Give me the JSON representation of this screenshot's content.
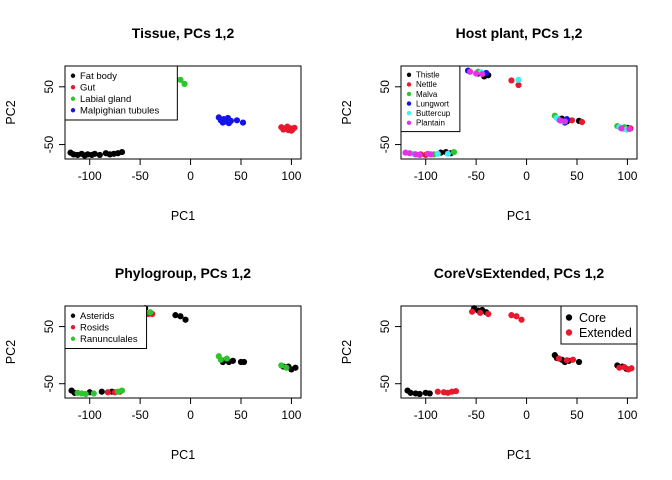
{
  "colors": {
    "black": "#000000",
    "red": "#e8192c",
    "green": "#2ec42e",
    "blue": "#1414e8",
    "cyan": "#3ff0f0",
    "magenta": "#e632e6"
  },
  "chart_data": [
    {
      "type": "scatter",
      "title": "Tissue, PCs 1,2",
      "xlabel": "PC1",
      "ylabel": "PC2",
      "xticks": [
        "-100",
        "-50",
        "0",
        "50",
        "100"
      ],
      "yticks": [
        "-50",
        "50"
      ],
      "legend_position": "top-left",
      "legend_size": "small",
      "series": [
        {
          "name": "Fat body",
          "color": "#000000",
          "points": [
            [
              -119,
              -64
            ],
            [
              -116,
              -67
            ],
            [
              -112,
              -68
            ],
            [
              -108,
              -66
            ],
            [
              -105,
              -69
            ],
            [
              -102,
              -67
            ],
            [
              -98,
              -68
            ],
            [
              -95,
              -66
            ],
            [
              -90,
              -68
            ],
            [
              -84,
              -65
            ],
            [
              -80,
              -67
            ],
            [
              -76,
              -66
            ],
            [
              -72,
              -65
            ],
            [
              -68,
              -63
            ]
          ]
        },
        {
          "name": "Gut",
          "color": "#e8192c",
          "points": [
            [
              90,
              -20
            ],
            [
              93,
              -23
            ],
            [
              95,
              -21
            ],
            [
              97,
              -25
            ],
            [
              99,
              -22
            ],
            [
              101,
              -24
            ],
            [
              103,
              -21
            ],
            [
              96,
              -19
            ],
            [
              92,
              -24
            ],
            [
              100,
              -26
            ]
          ]
        },
        {
          "name": "Labial gland",
          "color": "#2ec42e",
          "points": [
            [
              -15,
              63
            ],
            [
              -10,
              62
            ],
            [
              -6,
              55
            ]
          ]
        },
        {
          "name": "Malpighian tubules",
          "color": "#1414e8",
          "points": [
            [
              28,
              -3
            ],
            [
              30,
              -8
            ],
            [
              33,
              -6
            ],
            [
              35,
              -10
            ],
            [
              37,
              -4
            ],
            [
              40,
              -9
            ],
            [
              32,
              -12
            ],
            [
              38,
              -13
            ],
            [
              46,
              -8
            ],
            [
              52,
              -12
            ]
          ]
        }
      ]
    },
    {
      "type": "scatter",
      "title": "Host plant, PCs 1,2",
      "xlabel": "PC1",
      "ylabel": "PC2",
      "xticks": [
        "-100",
        "-50",
        "0",
        "50",
        "100"
      ],
      "yticks": [
        "-50",
        "50"
      ],
      "legend_position": "top-left",
      "legend_size": "small",
      "series": [
        {
          "name": "Thistle",
          "color": "#000000",
          "points": [
            [
              -85,
              -64
            ],
            [
              -80,
              -63
            ],
            [
              -75,
              -65
            ],
            [
              -42,
              68
            ],
            [
              -38,
              70
            ],
            [
              -48,
              73
            ],
            [
              40,
              -10
            ],
            [
              52,
              -9
            ],
            [
              100,
              -21
            ],
            [
              35,
              -5
            ]
          ]
        },
        {
          "name": "Nettle",
          "color": "#e8192c",
          "points": [
            [
              -105,
              -67
            ],
            [
              -100,
              -68
            ],
            [
              -15,
              61
            ],
            [
              -8,
              53
            ],
            [
              45,
              -8
            ],
            [
              55,
              -11
            ],
            [
              96,
              -22
            ],
            [
              103,
              -22
            ]
          ]
        },
        {
          "name": "Malva",
          "color": "#2ec42e",
          "points": [
            [
              -92,
              -67
            ],
            [
              -72,
              -63
            ],
            [
              -48,
              76
            ],
            [
              28,
              0
            ],
            [
              90,
              -18
            ],
            [
              97,
              -20
            ]
          ]
        },
        {
          "name": "Lungwort",
          "color": "#1414e8",
          "points": [
            [
              -58,
              78
            ],
            [
              -40,
              74
            ],
            [
              32,
              -6
            ],
            [
              38,
              -12
            ],
            [
              40,
              -6
            ]
          ]
        },
        {
          "name": "Buttercup",
          "color": "#3ff0f0",
          "points": [
            [
              -112,
              -66
            ],
            [
              -88,
              -66
            ],
            [
              -78,
              -66
            ],
            [
              -45,
              75
            ],
            [
              -8,
              62
            ],
            [
              30,
              -4
            ],
            [
              35,
              -10
            ],
            [
              92,
              -20
            ],
            [
              99,
              -24
            ]
          ]
        },
        {
          "name": "Plantain",
          "color": "#e632e6",
          "points": [
            [
              -120,
              -64
            ],
            [
              -116,
              -65
            ],
            [
              -110,
              -67
            ],
            [
              -106,
              -68
            ],
            [
              -98,
              -66
            ],
            [
              -95,
              -67
            ],
            [
              -56,
              76
            ],
            [
              -50,
              73
            ],
            [
              -44,
              72
            ],
            [
              33,
              -8
            ],
            [
              38,
              -10
            ],
            [
              94,
              -22
            ],
            [
              102,
              -23
            ]
          ]
        }
      ]
    },
    {
      "type": "scatter",
      "title": "Phylogroup, PCs 1,2",
      "xlabel": "PC1",
      "ylabel": "PC2",
      "xticks": [
        "-100",
        "-50",
        "0",
        "50",
        "100"
      ],
      "yticks": [
        "-50",
        "50"
      ],
      "legend_position": "top-left",
      "legend_size": "small",
      "series": [
        {
          "name": "Asterids",
          "color": "#000000",
          "points": [
            [
              -118,
              -62
            ],
            [
              -115,
              -66
            ],
            [
              -100,
              -65
            ],
            [
              -88,
              -64
            ],
            [
              -78,
              -64
            ],
            [
              -45,
              82
            ],
            [
              -15,
              70
            ],
            [
              -10,
              68
            ],
            [
              -5,
              62
            ],
            [
              32,
              -12
            ],
            [
              35,
              -8
            ],
            [
              38,
              -12
            ],
            [
              42,
              -10
            ],
            [
              50,
              -12
            ],
            [
              53,
              -12
            ],
            [
              92,
              -20
            ],
            [
              97,
              -20
            ],
            [
              100,
              -25
            ],
            [
              104,
              -22
            ]
          ]
        },
        {
          "name": "Rosids",
          "color": "#e8192c",
          "points": [
            [
              -82,
              -65
            ],
            [
              -75,
              -65
            ],
            [
              -70,
              -64
            ],
            [
              -42,
              72
            ],
            [
              -38,
              72
            ]
          ]
        },
        {
          "name": "Ranunculales",
          "color": "#2ec42e",
          "points": [
            [
              -112,
              -66
            ],
            [
              -108,
              -67
            ],
            [
              -104,
              -68
            ],
            [
              -96,
              -67
            ],
            [
              -72,
              -64
            ],
            [
              -68,
              -62
            ],
            [
              -48,
              80
            ],
            [
              -40,
              75
            ],
            [
              28,
              -2
            ],
            [
              30,
              -8
            ],
            [
              36,
              -6
            ],
            [
              90,
              -18
            ],
            [
              95,
              -22
            ]
          ]
        }
      ]
    },
    {
      "type": "scatter",
      "title": "CoreVsExtended, PCs 1,2",
      "xlabel": "PC1",
      "ylabel": "PC2",
      "xticks": [
        "-100",
        "-50",
        "0",
        "50",
        "100"
      ],
      "yticks": [
        "-50",
        "50"
      ],
      "legend_position": "top-right",
      "legend_size": "large",
      "series": [
        {
          "name": "Core",
          "color": "#000000",
          "points": [
            [
              -118,
              -62
            ],
            [
              -115,
              -66
            ],
            [
              -110,
              -67
            ],
            [
              -106,
              -68
            ],
            [
              -100,
              -66
            ],
            [
              -96,
              -67
            ],
            [
              -52,
              82
            ],
            [
              -48,
              78
            ],
            [
              -44,
              79
            ],
            [
              -40,
              75
            ],
            [
              28,
              0
            ],
            [
              30,
              -5
            ],
            [
              35,
              -8
            ],
            [
              38,
              -12
            ],
            [
              42,
              -10
            ],
            [
              52,
              -12
            ],
            [
              90,
              -18
            ],
            [
              95,
              -20
            ],
            [
              99,
              -24
            ]
          ]
        },
        {
          "name": "Extended",
          "color": "#e8192c",
          "points": [
            [
              -88,
              -64
            ],
            [
              -82,
              -65
            ],
            [
              -78,
              -66
            ],
            [
              -74,
              -64
            ],
            [
              -70,
              -63
            ],
            [
              -54,
              76
            ],
            [
              -46,
              74
            ],
            [
              -38,
              72
            ],
            [
              -15,
              70
            ],
            [
              -10,
              68
            ],
            [
              -5,
              62
            ],
            [
              32,
              -6
            ],
            [
              40,
              -9
            ],
            [
              46,
              -8
            ],
            [
              92,
              -22
            ],
            [
              97,
              -21
            ],
            [
              101,
              -25
            ],
            [
              104,
              -23
            ]
          ]
        }
      ]
    }
  ]
}
